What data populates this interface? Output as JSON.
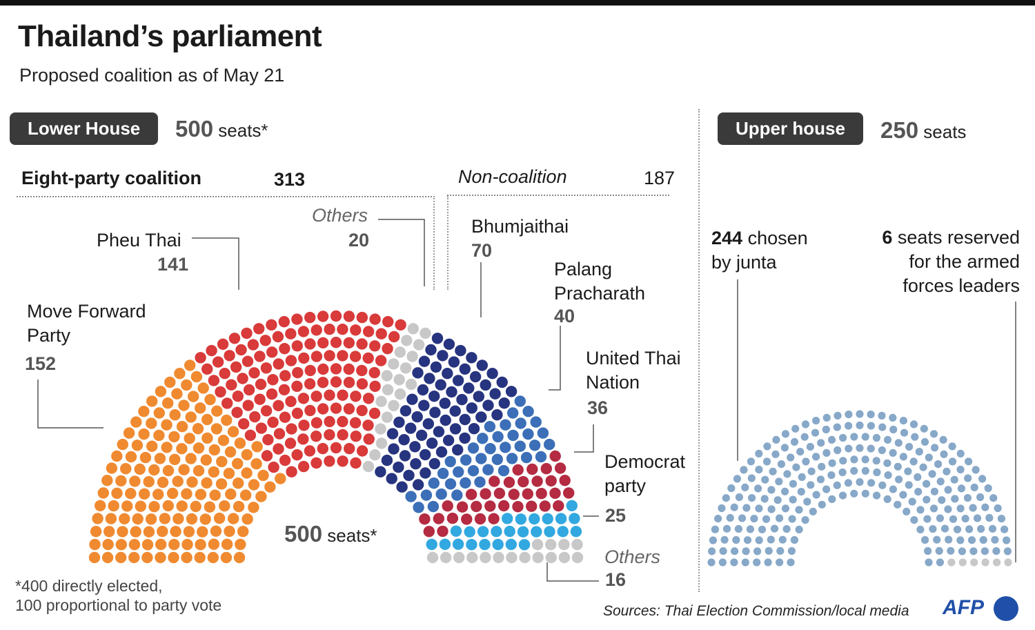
{
  "title": "Thailand’s parliament",
  "subtitle": "Proposed coalition as of May 21",
  "lower_house": {
    "pill": "Lower House",
    "seats_num": "500",
    "seats_suffix": " seats*",
    "coalition_label": "Eight-party coalition",
    "coalition_total": "313",
    "noncoalition_label": "Non-coalition",
    "noncoalition_total": "187",
    "center_num": "500",
    "center_suffix": " seats*",
    "footnote_line1": "*400 directly elected,",
    "footnote_line2": "100 proportional to party vote"
  },
  "upper_house": {
    "pill": "Upper house",
    "seats_num": "250",
    "seats_suffix": " seats",
    "junta_num": "244",
    "junta_line1": " chosen",
    "junta_line2": "by junta",
    "armed_num": "6",
    "armed_line1": " seats reserved",
    "armed_line2": "for the armed",
    "armed_line3": "forces leaders"
  },
  "labels": {
    "move_forward_1": "Move Forward",
    "move_forward_2": "Party",
    "move_forward_num": "152",
    "pheu_thai": "Pheu Thai",
    "pheu_thai_num": "141",
    "others_coal": "Others",
    "others_coal_num": "20",
    "bhumjaithai": "Bhumjaithai",
    "bhumjaithai_num": "70",
    "palang_1": "Palang",
    "palang_2": "Pracharath",
    "palang_num": "40",
    "utn_1": "United Thai",
    "utn_2": "Nation",
    "utn_num": "36",
    "democrat_1": "Democrat",
    "democrat_2": "party",
    "democrat_num": "25",
    "others_non": "Others",
    "others_non_num": "16"
  },
  "footer": {
    "sources": "Sources: Thai Election Commission/local media",
    "logo": "AFP"
  },
  "chart_data": [
    {
      "type": "parliament",
      "title": "Lower House",
      "total": 500,
      "series": [
        {
          "name": "Move Forward Party",
          "value": 152,
          "color": "#f08a30",
          "group": "Eight-party coalition"
        },
        {
          "name": "Pheu Thai",
          "value": 141,
          "color": "#d93a3a",
          "group": "Eight-party coalition"
        },
        {
          "name": "Others",
          "value": 20,
          "color": "#c8c8c8",
          "group": "Eight-party coalition"
        },
        {
          "name": "Bhumjaithai",
          "value": 70,
          "color": "#27347f",
          "group": "Non-coalition"
        },
        {
          "name": "Palang Pracharath",
          "value": 40,
          "color": "#3c6fb8",
          "group": "Non-coalition"
        },
        {
          "name": "United Thai Nation",
          "value": 36,
          "color": "#b42b42",
          "group": "Non-coalition"
        },
        {
          "name": "Democrat party",
          "value": 25,
          "color": "#32a8e0",
          "group": "Non-coalition"
        },
        {
          "name": "Others",
          "value": 16,
          "color": "#c8c8c8",
          "group": "Non-coalition"
        }
      ]
    },
    {
      "type": "parliament",
      "title": "Upper house",
      "total": 250,
      "series": [
        {
          "name": "chosen by junta",
          "value": 244,
          "color": "#87a8c8"
        },
        {
          "name": "seats reserved for the armed forces leaders",
          "value": 6,
          "color": "#c8c8c8"
        }
      ]
    }
  ]
}
